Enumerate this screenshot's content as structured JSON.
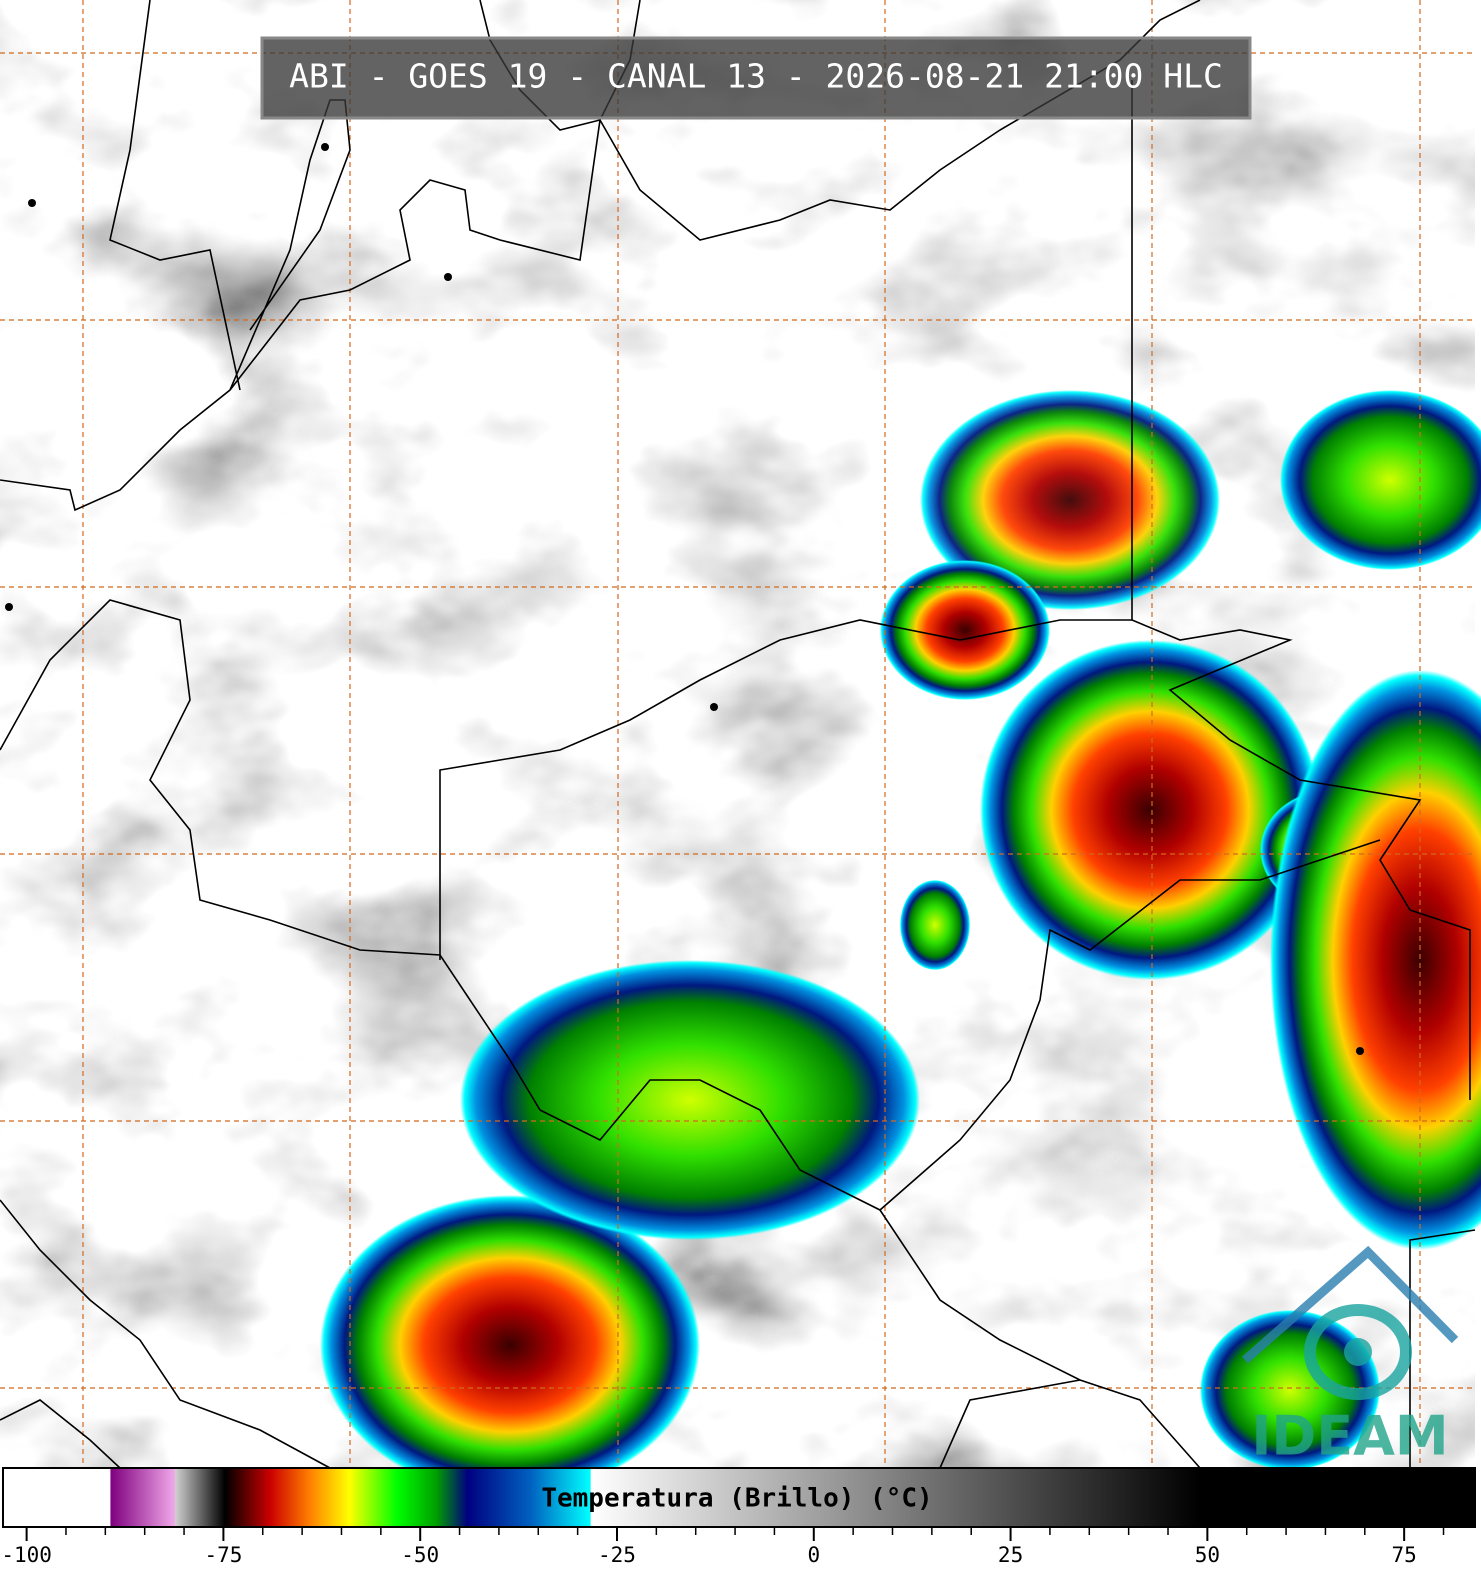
{
  "title": "ABI - GOES 19 - CANAL 13 - 2026-08-21 21:00 HLC",
  "logo": "IDEAM",
  "colorbar": {
    "label": "Temperatura (Brillo) (°C)",
    "range": [
      -103,
      84
    ],
    "ticks": [
      -100,
      -75,
      -50,
      -25,
      0,
      25,
      50,
      75
    ],
    "minor_ticks": [
      -95,
      -90,
      -85,
      -80,
      -70,
      -65,
      -60,
      -55,
      -45,
      -40,
      -35,
      -30,
      -20,
      -15,
      -10,
      -5,
      5,
      10,
      15,
      20,
      30,
      35,
      40,
      45,
      55,
      60,
      65,
      70,
      80
    ],
    "colorstops": [
      {
        "value": -103,
        "color": "#ffffff"
      },
      {
        "value": -89.4,
        "color": "#ffffff"
      },
      {
        "value": -89.3,
        "color": "#800080"
      },
      {
        "value": -81.2,
        "color": "#f0a8e8"
      },
      {
        "value": -81.1,
        "color": "#d0d0d0"
      },
      {
        "value": -74.8,
        "color": "#000000"
      },
      {
        "value": -69,
        "color": "#cc0000"
      },
      {
        "value": -64,
        "color": "#ff8000"
      },
      {
        "value": -59,
        "color": "#ffff00"
      },
      {
        "value": -53,
        "color": "#00ff00"
      },
      {
        "value": -48,
        "color": "#00a000"
      },
      {
        "value": -44,
        "color": "#000080"
      },
      {
        "value": -36,
        "color": "#0060c0"
      },
      {
        "value": -28.4,
        "color": "#00ffff"
      },
      {
        "value": -28.3,
        "color": "#ffffff"
      },
      {
        "value": 49,
        "color": "#000000"
      },
      {
        "value": 84,
        "color": "#000000"
      }
    ]
  }
}
